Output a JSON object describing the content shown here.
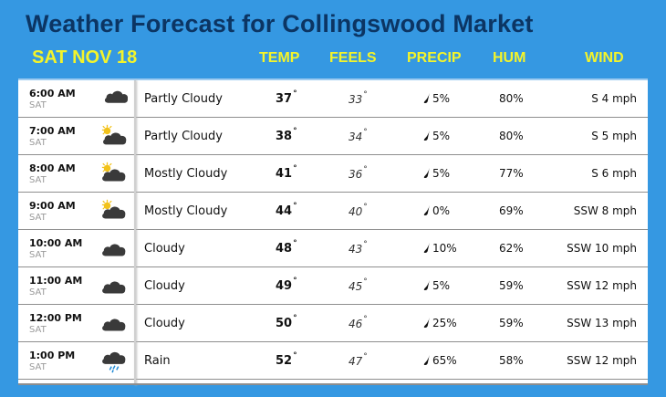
{
  "title": "Weather Forecast for Collingswood Market",
  "date": "SAT NOV 18",
  "columns": {
    "temp": "TEMP",
    "feels": "FEELS",
    "precip": "PRECIP",
    "hum": "HUM",
    "wind": "WIND"
  },
  "colors": {
    "background": "#3598e2",
    "title": "#0c3563",
    "header_yellow": "#f4f42a",
    "icon_cloud": "#3a3a3a",
    "rain": "#1f8ad6"
  },
  "rows": [
    {
      "time": "6:00 AM",
      "day": "SAT",
      "icon": "partly-cloudy-night-icon",
      "condition": "Partly Cloudy",
      "temp": "37",
      "feels": "33",
      "precip": "5%",
      "hum": "80%",
      "wind": "S 4 mph"
    },
    {
      "time": "7:00 AM",
      "day": "SAT",
      "icon": "partly-cloudy-day-icon",
      "condition": "Partly Cloudy",
      "temp": "38",
      "feels": "34",
      "precip": "5%",
      "hum": "80%",
      "wind": "S 5 mph"
    },
    {
      "time": "8:00 AM",
      "day": "SAT",
      "icon": "mostly-cloudy-day-icon",
      "condition": "Mostly Cloudy",
      "temp": "41",
      "feels": "36",
      "precip": "5%",
      "hum": "77%",
      "wind": "S 6 mph"
    },
    {
      "time": "9:00 AM",
      "day": "SAT",
      "icon": "mostly-cloudy-day-icon",
      "condition": "Mostly Cloudy",
      "temp": "44",
      "feels": "40",
      "precip": "0%",
      "hum": "69%",
      "wind": "SSW 8 mph"
    },
    {
      "time": "10:00 AM",
      "day": "SAT",
      "icon": "cloudy-icon",
      "condition": "Cloudy",
      "temp": "48",
      "feels": "43",
      "precip": "10%",
      "hum": "62%",
      "wind": "SSW 10 mph"
    },
    {
      "time": "11:00 AM",
      "day": "SAT",
      "icon": "cloudy-icon",
      "condition": "Cloudy",
      "temp": "49",
      "feels": "45",
      "precip": "5%",
      "hum": "59%",
      "wind": "SSW 12 mph"
    },
    {
      "time": "12:00 PM",
      "day": "SAT",
      "icon": "cloudy-icon",
      "condition": "Cloudy",
      "temp": "50",
      "feels": "46",
      "precip": "25%",
      "hum": "59%",
      "wind": "SSW 13 mph"
    },
    {
      "time": "1:00 PM",
      "day": "SAT",
      "icon": "rain-icon",
      "condition": "Rain",
      "temp": "52",
      "feels": "47",
      "precip": "65%",
      "hum": "58%",
      "wind": "SSW 12 mph"
    }
  ],
  "degree_symbol": "°"
}
